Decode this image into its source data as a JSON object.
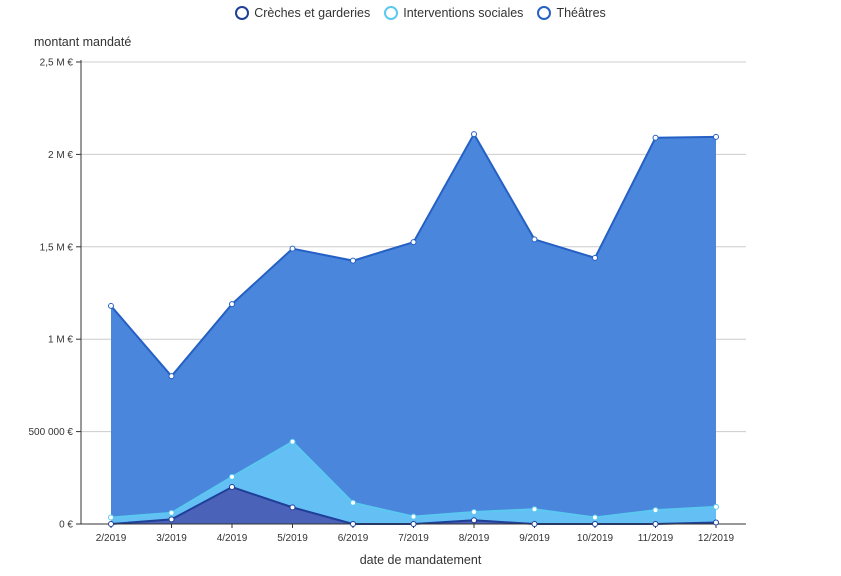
{
  "chart_data": {
    "type": "area",
    "stacked": true,
    "xlabel": "date de mandatement",
    "ylabel": "montant mandaté",
    "categories": [
      "2/2019",
      "3/2019",
      "4/2019",
      "5/2019",
      "6/2019",
      "7/2019",
      "8/2019",
      "9/2019",
      "10/2019",
      "11/2019",
      "12/2019"
    ],
    "ylim": [
      0,
      2500000
    ],
    "y_ticks": [
      {
        "value": 0,
        "label": "0 €"
      },
      {
        "value": 500000,
        "label": "500 000 €"
      },
      {
        "value": 1000000,
        "label": "1 M €"
      },
      {
        "value": 1500000,
        "label": "1,5 M €"
      },
      {
        "value": 2000000,
        "label": "2 M €"
      },
      {
        "value": 2500000,
        "label": "2,5 M €"
      }
    ],
    "grid": true,
    "legend_position": "top-center",
    "series": [
      {
        "name": "Crèches et garderies",
        "color": "#1f3f99",
        "fill": "#4a62b8",
        "values": [
          0,
          25000,
          200000,
          90000,
          0,
          0,
          20000,
          0,
          0,
          0,
          8000
        ]
      },
      {
        "name": "Interventions sociales",
        "color": "#5bc8f0",
        "fill": "#64bff5",
        "values": [
          35000,
          35000,
          55000,
          355000,
          115000,
          40000,
          45000,
          80000,
          35000,
          75000,
          85000
        ]
      },
      {
        "name": "Théâtres",
        "color": "#2560c4",
        "fill": "#4a86dc",
        "values": [
          1145000,
          740000,
          935000,
          1045000,
          1310000,
          1485000,
          2045000,
          1460000,
          1405000,
          2015000,
          2002000
        ]
      }
    ]
  }
}
